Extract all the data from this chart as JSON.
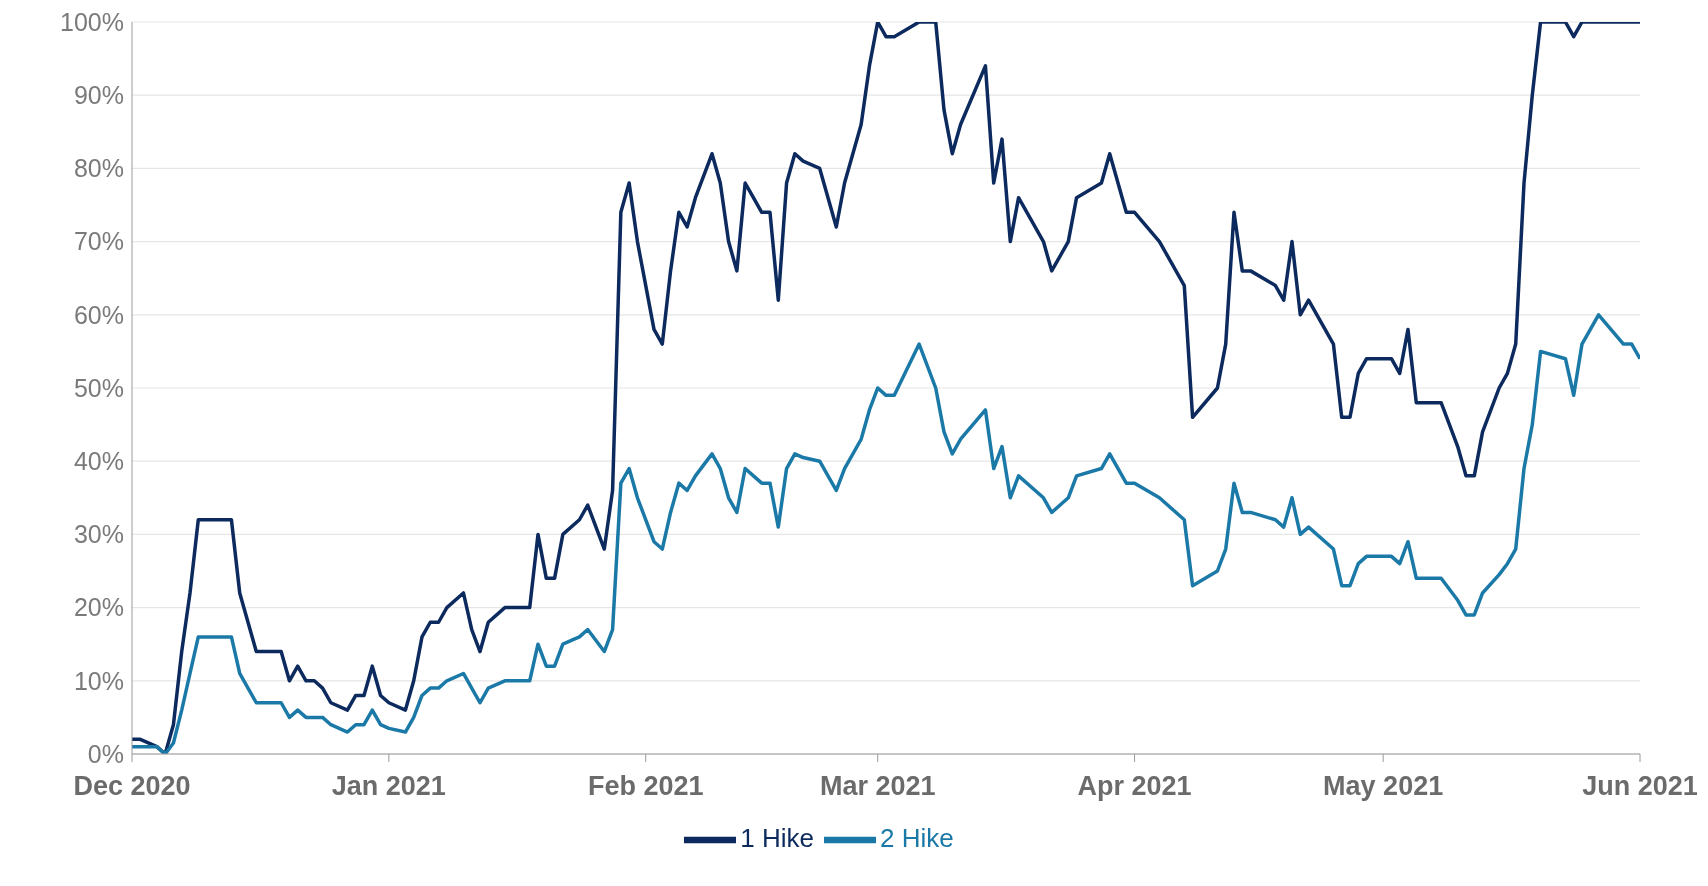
{
  "chart_data": {
    "type": "line",
    "x": [
      "2020-12-01",
      "2020-12-02",
      "2020-12-04",
      "2020-12-05",
      "2020-12-06",
      "2020-12-07",
      "2020-12-08",
      "2020-12-09",
      "2020-12-11",
      "2020-12-13",
      "2020-12-14",
      "2020-12-15",
      "2020-12-16",
      "2020-12-18",
      "2020-12-19",
      "2020-12-20",
      "2020-12-21",
      "2020-12-22",
      "2020-12-23",
      "2020-12-24",
      "2020-12-25",
      "2020-12-27",
      "2020-12-28",
      "2020-12-29",
      "2020-12-30",
      "2020-12-31",
      "2021-01-01",
      "2021-01-03",
      "2021-01-04",
      "2021-01-05",
      "2021-01-06",
      "2021-01-07",
      "2021-01-08",
      "2021-01-10",
      "2021-01-11",
      "2021-01-12",
      "2021-01-13",
      "2021-01-15",
      "2021-01-16",
      "2021-01-18",
      "2021-01-19",
      "2021-01-20",
      "2021-01-21",
      "2021-01-22",
      "2021-01-24",
      "2021-01-25",
      "2021-01-27",
      "2021-01-28",
      "2021-01-29",
      "2021-01-30",
      "2021-01-31",
      "2021-02-02",
      "2021-02-03",
      "2021-02-04",
      "2021-02-05",
      "2021-02-06",
      "2021-02-07",
      "2021-02-09",
      "2021-02-10",
      "2021-02-11",
      "2021-02-12",
      "2021-02-13",
      "2021-02-14",
      "2021-02-15",
      "2021-02-16",
      "2021-02-17",
      "2021-02-18",
      "2021-02-19",
      "2021-02-20",
      "2021-02-22",
      "2021-02-23",
      "2021-02-24",
      "2021-02-25",
      "2021-02-27",
      "2021-02-28",
      "2021-03-01",
      "2021-03-02",
      "2021-03-03",
      "2021-03-06",
      "2021-03-08",
      "2021-03-09",
      "2021-03-10",
      "2021-03-11",
      "2021-03-14",
      "2021-03-15",
      "2021-03-16",
      "2021-03-17",
      "2021-03-18",
      "2021-03-21",
      "2021-03-22",
      "2021-03-24",
      "2021-03-25",
      "2021-03-28",
      "2021-03-29",
      "2021-03-31",
      "2021-04-01",
      "2021-04-04",
      "2021-04-07",
      "2021-04-08",
      "2021-04-11",
      "2021-04-12",
      "2021-04-13",
      "2021-04-14",
      "2021-04-15",
      "2021-04-18",
      "2021-04-19",
      "2021-04-20",
      "2021-04-21",
      "2021-04-22",
      "2021-04-25",
      "2021-04-26",
      "2021-04-27",
      "2021-04-28",
      "2021-04-29",
      "2021-05-02",
      "2021-05-03",
      "2021-05-04",
      "2021-05-05",
      "2021-05-08",
      "2021-05-10",
      "2021-05-11",
      "2021-05-12",
      "2021-05-13",
      "2021-05-15",
      "2021-05-16",
      "2021-05-17",
      "2021-05-18",
      "2021-05-19",
      "2021-05-20",
      "2021-05-23",
      "2021-05-24",
      "2021-05-25",
      "2021-05-27",
      "2021-05-30",
      "2021-05-31",
      "2021-06-01"
    ],
    "series": [
      {
        "name": "1 Hike",
        "color": "#0c2a5e",
        "values": [
          2,
          2,
          1,
          0,
          4,
          14,
          22,
          32,
          32,
          32,
          22,
          18,
          14,
          14,
          14,
          10,
          12,
          10,
          10,
          9,
          7,
          6,
          8,
          8,
          12,
          8,
          7,
          6,
          10,
          16,
          18,
          18,
          20,
          22,
          17,
          14,
          18,
          20,
          20,
          20,
          30,
          24,
          24,
          30,
          32,
          34,
          28,
          36,
          74,
          78,
          70,
          58,
          56,
          66,
          74,
          72,
          76,
          82,
          78,
          70,
          66,
          78,
          76,
          74,
          74,
          62,
          78,
          82,
          81,
          80,
          76,
          72,
          78,
          86,
          94,
          100,
          98,
          98,
          100,
          100,
          88,
          82,
          86,
          94,
          78,
          84,
          70,
          76,
          70,
          66,
          70,
          76,
          78,
          82,
          74,
          74,
          70,
          64,
          46,
          50,
          56,
          74,
          66,
          66,
          64,
          62,
          70,
          60,
          62,
          56,
          46,
          46,
          52,
          54,
          54,
          52,
          58,
          48,
          48,
          42,
          38,
          38,
          44,
          50,
          52,
          56,
          78,
          90,
          100,
          100,
          98,
          100,
          100,
          100,
          100,
          100
        ]
      },
      {
        "name": "2 Hike",
        "color": "#1b79a8",
        "values": [
          1,
          1,
          1,
          0,
          1.5,
          6,
          11,
          16,
          16,
          16,
          11,
          9,
          7,
          7,
          7,
          5,
          6,
          5,
          5,
          5,
          4,
          3,
          4,
          4,
          6,
          4,
          3.5,
          3,
          5,
          8,
          9,
          9,
          10,
          11,
          9,
          7,
          9,
          10,
          10,
          10,
          15,
          12,
          12,
          15,
          16,
          17,
          14,
          17,
          37,
          39,
          35,
          29,
          28,
          33,
          37,
          36,
          38,
          41,
          39,
          35,
          33,
          39,
          38,
          37,
          37,
          31,
          39,
          41,
          40.5,
          40,
          38,
          36,
          39,
          43,
          47,
          50,
          49,
          49,
          56,
          50,
          44,
          41,
          43,
          47,
          39,
          42,
          35,
          38,
          35,
          33,
          35,
          38,
          39,
          41,
          37,
          37,
          35,
          32,
          23,
          25,
          28,
          37,
          33,
          33,
          32,
          31,
          35,
          30,
          31,
          28,
          23,
          23,
          26,
          27,
          27,
          26,
          29,
          24,
          24,
          21,
          19,
          19,
          22,
          24.5,
          26,
          28,
          39,
          45,
          55,
          54,
          49,
          56,
          60,
          56,
          56,
          54
        ]
      }
    ],
    "xlim": [
      "2020-12-01",
      "2021-06-01"
    ],
    "xticks": [
      {
        "value": "2020-12-01",
        "label": "Dec 2020"
      },
      {
        "value": "2021-01-01",
        "label": "Jan 2021"
      },
      {
        "value": "2021-02-01",
        "label": "Feb 2021"
      },
      {
        "value": "2021-03-01",
        "label": "Mar 2021"
      },
      {
        "value": "2021-04-01",
        "label": "Apr 2021"
      },
      {
        "value": "2021-05-01",
        "label": "May 2021"
      },
      {
        "value": "2021-06-01",
        "label": "Jun 2021"
      }
    ],
    "ylim": [
      0,
      100
    ],
    "yticks": [
      {
        "value": 0,
        "label": "0%"
      },
      {
        "value": 10,
        "label": "10%"
      },
      {
        "value": 20,
        "label": "20%"
      },
      {
        "value": 30,
        "label": "30%"
      },
      {
        "value": 40,
        "label": "40%"
      },
      {
        "value": 50,
        "label": "50%"
      },
      {
        "value": 60,
        "label": "60%"
      },
      {
        "value": 70,
        "label": "70%"
      },
      {
        "value": 80,
        "label": "80%"
      },
      {
        "value": 90,
        "label": "90%"
      },
      {
        "value": 100,
        "label": "100%"
      }
    ],
    "grid": "y",
    "legend": "bottom",
    "marker": "none",
    "line_style": "solid"
  }
}
